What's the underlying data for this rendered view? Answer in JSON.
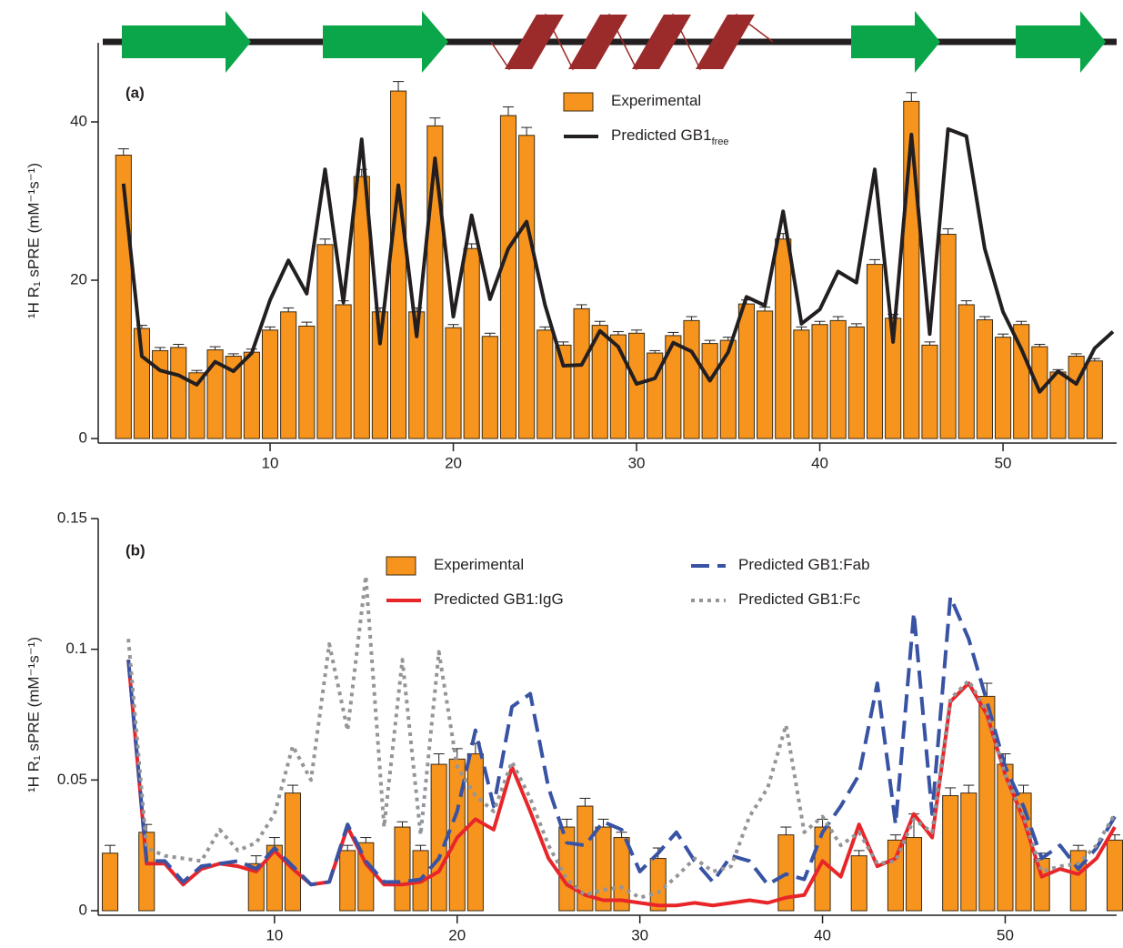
{
  "chart_data": [
    {
      "type": "combo",
      "label": "(a)",
      "ylabel": "¹H R₁ sPRE (mM⁻¹s⁻¹)",
      "xlim": [
        0.62,
        56.2
      ],
      "xticks": [
        10,
        20,
        30,
        40,
        50
      ],
      "ylim": [
        0,
        50
      ],
      "yticks": [
        0,
        20,
        40
      ],
      "series": [
        {
          "name": "Experimental",
          "kind": "bar",
          "color": "#f7941d",
          "x": [
            2,
            3,
            4,
            5,
            6,
            7,
            8,
            9,
            10,
            11,
            12,
            13,
            14,
            15,
            16,
            17,
            18,
            19,
            20,
            21,
            22,
            23,
            24,
            25,
            26,
            27,
            28,
            29,
            30,
            31,
            32,
            33,
            34,
            35,
            36,
            37,
            38,
            39,
            40,
            41,
            42,
            43,
            44,
            45,
            46,
            47,
            48,
            49,
            50,
            51,
            52,
            53,
            54,
            55
          ],
          "values": [
            35.8,
            13.9,
            11.1,
            11.5,
            8.3,
            11.2,
            10.4,
            10.9,
            13.7,
            16.0,
            14.2,
            24.5,
            16.9,
            33.1,
            16.0,
            43.9,
            16.0,
            39.5,
            14.0,
            24.0,
            12.9,
            40.8,
            38.3,
            13.7,
            11.8,
            16.4,
            14.3,
            13.1,
            13.3,
            10.8,
            13.0,
            14.9,
            12.0,
            12.4,
            17.0,
            16.1,
            25.2,
            13.7,
            14.4,
            14.9,
            14.1,
            22.0,
            15.2,
            42.6,
            11.8,
            25.8,
            16.9,
            15.0,
            12.8,
            14.4,
            11.6,
            8.4,
            10.4,
            9.8
          ],
          "errors": [
            0.8,
            0.4,
            0.4,
            0.4,
            0.3,
            0.4,
            0.3,
            0.4,
            0.4,
            0.5,
            0.5,
            0.7,
            0.5,
            0.9,
            0.5,
            1.2,
            0.5,
            1.0,
            0.4,
            0.6,
            0.4,
            1.1,
            1.0,
            0.4,
            0.4,
            0.5,
            0.5,
            0.4,
            0.4,
            0.3,
            0.4,
            0.5,
            0.4,
            0.4,
            0.5,
            0.5,
            0.7,
            0.4,
            0.4,
            0.5,
            0.4,
            0.6,
            0.5,
            1.1,
            0.4,
            0.7,
            0.5,
            0.4,
            0.4,
            0.4,
            0.3,
            0.3,
            0.3,
            0.3
          ]
        },
        {
          "name": "Predicted GB1",
          "name_sub": "free",
          "kind": "line",
          "style": "solid",
          "color": "#231f20",
          "x": [
            2,
            3,
            4,
            5,
            6,
            7,
            8,
            9,
            10,
            11,
            12,
            13,
            14,
            15,
            16,
            17,
            18,
            19,
            20,
            21,
            22,
            23,
            24,
            25,
            26,
            27,
            28,
            29,
            30,
            31,
            32,
            33,
            34,
            35,
            36,
            37,
            38,
            39,
            40,
            41,
            42,
            43,
            44,
            45,
            46,
            47,
            48,
            49,
            50,
            51,
            52,
            53,
            54,
            55,
            56
          ],
          "values": [
            32.2,
            10.4,
            8.6,
            8.0,
            6.8,
            9.7,
            8.5,
            10.8,
            17.5,
            22.5,
            18.3,
            34.0,
            17.2,
            37.8,
            12.0,
            32.0,
            12.9,
            35.4,
            15.4,
            28.2,
            17.6,
            24.0,
            27.4,
            16.9,
            9.2,
            9.3,
            13.6,
            11.6,
            6.9,
            7.6,
            12.1,
            11.0,
            7.3,
            10.9,
            17.9,
            16.8,
            28.7,
            14.5,
            16.3,
            21.1,
            19.7,
            34.0,
            12.2,
            38.4,
            13.2,
            39.1,
            38.2,
            24.0,
            16.0,
            11.3,
            5.9,
            8.5,
            6.9,
            11.4,
            13.5
          ]
        }
      ]
    },
    {
      "type": "combo",
      "label": "(b)",
      "ylabel": "¹H R₁ sPRE (mM⁻¹s⁻¹)",
      "xlim": [
        0.35,
        56.1
      ],
      "xticks": [
        10,
        20,
        30,
        40,
        50
      ],
      "ylim": [
        0,
        0.15
      ],
      "yticks": [
        0,
        0.05,
        0.1,
        0.15
      ],
      "series": [
        {
          "name": "Experimental",
          "kind": "bar",
          "color": "#f7941d",
          "x": [
            1,
            3,
            9,
            10,
            11,
            14,
            15,
            17,
            18,
            19,
            20,
            21,
            26,
            27,
            28,
            29,
            31,
            38,
            40,
            42,
            44,
            45,
            47,
            48,
            49,
            50,
            51,
            52,
            54,
            56
          ],
          "values": [
            0.022,
            0.03,
            0.018,
            0.025,
            0.045,
            0.023,
            0.026,
            0.032,
            0.023,
            0.056,
            0.058,
            0.06,
            0.032,
            0.04,
            0.032,
            0.028,
            0.02,
            0.029,
            0.032,
            0.021,
            0.027,
            0.028,
            0.044,
            0.045,
            0.082,
            0.056,
            0.045,
            0.02,
            0.023,
            0.027
          ],
          "errors": [
            0.003,
            0.003,
            0.003,
            0.003,
            0.003,
            0.002,
            0.002,
            0.002,
            0.002,
            0.004,
            0.004,
            0.004,
            0.003,
            0.003,
            0.003,
            0.002,
            0.004,
            0.003,
            0.003,
            0.002,
            0.002,
            0.009,
            0.003,
            0.003,
            0.005,
            0.004,
            0.003,
            0.002,
            0.002,
            0.002
          ]
        },
        {
          "name": "Predicted GB1:IgG",
          "kind": "line",
          "style": "solid",
          "color": "#e8262a",
          "x": [
            2,
            3,
            4,
            5,
            6,
            7,
            8,
            9,
            10,
            11,
            12,
            13,
            14,
            15,
            16,
            17,
            18,
            19,
            20,
            21,
            22,
            23,
            24,
            25,
            26,
            27,
            28,
            29,
            30,
            31,
            32,
            33,
            34,
            35,
            36,
            37,
            38,
            39,
            40,
            41,
            42,
            43,
            44,
            45,
            46,
            47,
            48,
            49,
            50,
            51,
            52,
            53,
            54,
            55,
            56
          ],
          "values": [
            0.096,
            0.018,
            0.018,
            0.01,
            0.016,
            0.018,
            0.017,
            0.015,
            0.023,
            0.016,
            0.01,
            0.011,
            0.032,
            0.018,
            0.01,
            0.01,
            0.011,
            0.015,
            0.028,
            0.035,
            0.031,
            0.055,
            0.038,
            0.02,
            0.01,
            0.006,
            0.004,
            0.004,
            0.003,
            0.002,
            0.002,
            0.003,
            0.002,
            0.003,
            0.004,
            0.003,
            0.005,
            0.006,
            0.019,
            0.013,
            0.033,
            0.017,
            0.02,
            0.037,
            0.028,
            0.08,
            0.087,
            0.075,
            0.052,
            0.035,
            0.013,
            0.016,
            0.014,
            0.02,
            0.032
          ]
        },
        {
          "name": "Predicted GB1:Fab",
          "kind": "line",
          "style": "dashed",
          "color": "#3853a4",
          "x": [
            2,
            3,
            4,
            5,
            6,
            7,
            8,
            9,
            10,
            11,
            12,
            13,
            14,
            15,
            16,
            17,
            18,
            19,
            20,
            21,
            22,
            23,
            24,
            25,
            26,
            27,
            28,
            29,
            30,
            31,
            32,
            33,
            34,
            35,
            36,
            37,
            38,
            39,
            40,
            41,
            42,
            43,
            44,
            45,
            46,
            47,
            48,
            49,
            50,
            51,
            52,
            53,
            54,
            55,
            56
          ],
          "values": [
            0.096,
            0.019,
            0.019,
            0.011,
            0.017,
            0.018,
            0.019,
            0.016,
            0.024,
            0.017,
            0.01,
            0.011,
            0.033,
            0.019,
            0.011,
            0.011,
            0.012,
            0.02,
            0.038,
            0.069,
            0.04,
            0.078,
            0.083,
            0.047,
            0.026,
            0.025,
            0.034,
            0.031,
            0.015,
            0.022,
            0.03,
            0.019,
            0.011,
            0.021,
            0.019,
            0.01,
            0.014,
            0.012,
            0.03,
            0.04,
            0.052,
            0.087,
            0.033,
            0.114,
            0.037,
            0.12,
            0.104,
            0.08,
            0.055,
            0.04,
            0.02,
            0.025,
            0.016,
            0.024,
            0.036
          ]
        },
        {
          "name": "Predicted GB1:Fc",
          "kind": "line",
          "style": "dotted",
          "color": "#939598",
          "x": [
            2,
            3,
            4,
            5,
            6,
            7,
            8,
            9,
            10,
            11,
            12,
            13,
            14,
            15,
            16,
            17,
            18,
            19,
            20,
            21,
            22,
            23,
            24,
            25,
            26,
            27,
            28,
            29,
            30,
            31,
            32,
            33,
            34,
            35,
            36,
            37,
            38,
            39,
            40,
            41,
            42,
            43,
            44,
            45,
            46,
            47,
            48,
            49,
            50,
            51,
            52,
            53,
            54,
            55,
            56
          ],
          "values": [
            0.104,
            0.024,
            0.021,
            0.02,
            0.019,
            0.031,
            0.023,
            0.026,
            0.037,
            0.063,
            0.05,
            0.102,
            0.069,
            0.128,
            0.032,
            0.096,
            0.029,
            0.099,
            0.055,
            0.044,
            0.038,
            0.057,
            0.043,
            0.025,
            0.012,
            0.006,
            0.008,
            0.009,
            0.005,
            0.007,
            0.013,
            0.02,
            0.015,
            0.017,
            0.036,
            0.047,
            0.071,
            0.03,
            0.036,
            0.025,
            0.03,
            0.018,
            0.019,
            0.035,
            0.03,
            0.081,
            0.088,
            0.076,
            0.052,
            0.036,
            0.015,
            0.017,
            0.018,
            0.025,
            0.037
          ]
        }
      ]
    }
  ]
}
